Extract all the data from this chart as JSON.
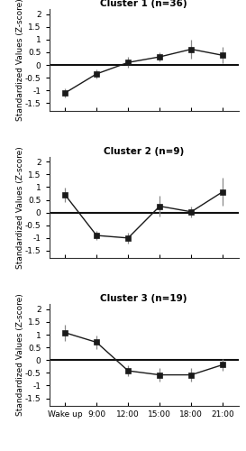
{
  "clusters": [
    {
      "title": "Cluster 1 (n=36)",
      "x_labels": [
        "Wake up",
        "9:00",
        "12:00",
        "15:00",
        "18:00",
        "21:00"
      ],
      "y_values": [
        -1.1,
        -0.35,
        0.1,
        0.32,
        0.62,
        0.38
      ],
      "y_errors": [
        0.18,
        0.18,
        0.22,
        0.18,
        0.38,
        0.32
      ]
    },
    {
      "title": "Cluster 2 (n=9)",
      "x_labels": [
        "Wake up",
        "9:00",
        "12:00",
        "15:00",
        "18:00",
        "21:00"
      ],
      "y_values": [
        0.7,
        -0.9,
        -1.0,
        0.25,
        0.03,
        0.82
      ],
      "y_errors": [
        0.28,
        0.18,
        0.22,
        0.4,
        0.22,
        0.55
      ]
    },
    {
      "title": "Cluster 3 (n=19)",
      "x_labels": [
        "Wake up",
        "9:00",
        "12:00",
        "15:00",
        "18:00",
        "21:00"
      ],
      "y_values": [
        1.08,
        0.7,
        -0.42,
        -0.58,
        -0.58,
        -0.18
      ],
      "y_errors": [
        0.32,
        0.25,
        0.22,
        0.28,
        0.28,
        0.22
      ]
    }
  ],
  "ylim": [
    -1.8,
    2.2
  ],
  "yticks": [
    -1.5,
    -1.0,
    -0.5,
    0.0,
    0.5,
    1.0,
    1.5,
    2.0
  ],
  "ytick_labels": [
    "-1.5",
    "-1",
    "-0.5",
    "0",
    "0.5",
    "1",
    "1.5",
    "2"
  ],
  "ylabel": "Standardized Values (Z-score)",
  "line_color": "#1a1a1a",
  "marker": "s",
  "marker_color": "#1a1a1a",
  "marker_size": 4,
  "error_color": "#888888",
  "zero_line_color": "#111111",
  "background_color": "#ffffff",
  "title_fontsize": 7.5,
  "tick_fontsize": 6.5,
  "ylabel_fontsize": 6.5
}
